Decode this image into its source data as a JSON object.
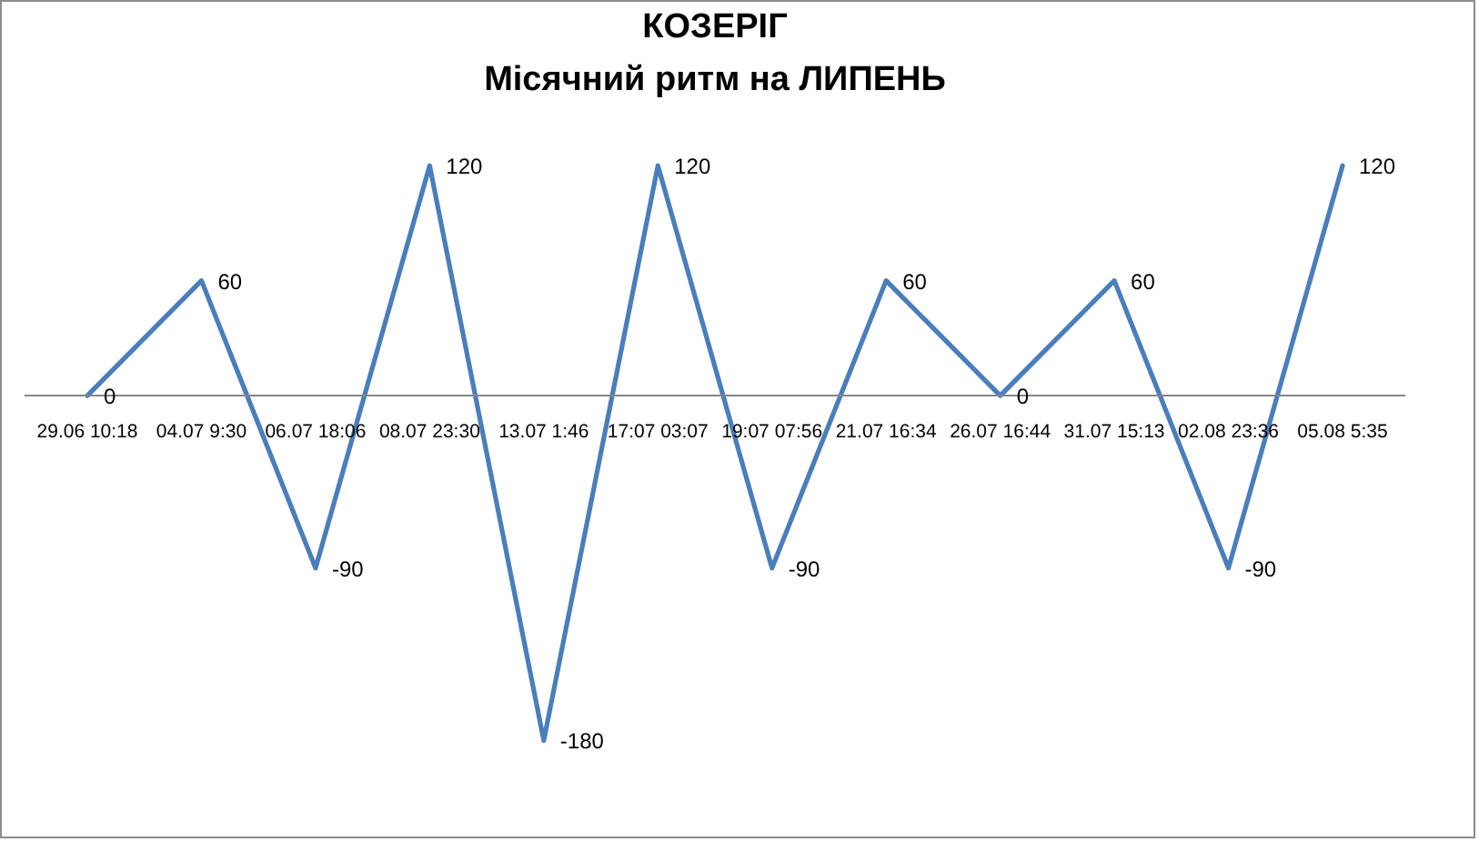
{
  "chart_data": {
    "type": "line",
    "title": "КОЗЕРІГ",
    "subtitle": "Місячний ритм на ЛИПЕНЬ",
    "categories": [
      "29.06 10:18",
      "04.07 9:30",
      "06.07 18:06",
      "08.07 23:30",
      "13.07 1:46",
      "17:07 03:07",
      "19:07 07:56",
      "21.07 16:34",
      "26.07 16:44",
      "31.07 15:13",
      "02.08 23:36",
      "05.08 5:35"
    ],
    "values": [
      0,
      60,
      -90,
      120,
      -180,
      120,
      -90,
      60,
      0,
      60,
      -90,
      120
    ],
    "color": "#4a7ebb",
    "line_style": "solid",
    "data_labels": true,
    "tick_labels": "x"
  }
}
